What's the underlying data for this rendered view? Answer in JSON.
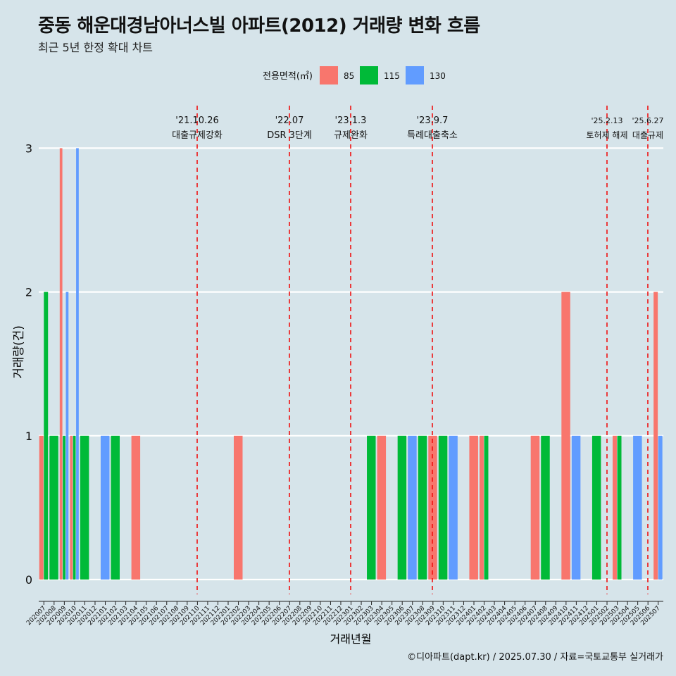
{
  "title": "중동 해운대경남아너스빌 아파트(2012) 거래량 변화 흐름",
  "subtitle": "최근 5년 한정 확대 차트",
  "caption": "©디아파트(dapt.kr) / 2025.07.30 / 자료=국토교통부 실거래가",
  "chart_data": {
    "type": "bar",
    "xlabel": "거래년월",
    "ylabel": "거래량(건)",
    "ylim": [
      0,
      3
    ],
    "yticks": [
      0,
      1,
      2,
      3
    ],
    "legend": {
      "title": "전용면적(㎡)",
      "position": "top"
    },
    "colors": {
      "85": "#f8766d",
      "115": "#00ba38",
      "130": "#619cff"
    },
    "categories": [
      "202007",
      "202008",
      "202009",
      "202010",
      "202011",
      "202012",
      "202101",
      "202102",
      "202103",
      "202104",
      "202105",
      "202106",
      "202107",
      "202108",
      "202109",
      "202110",
      "202111",
      "202112",
      "202201",
      "202202",
      "202203",
      "202204",
      "202205",
      "202206",
      "202207",
      "202208",
      "202209",
      "202210",
      "202211",
      "202212",
      "202301",
      "202302",
      "202303",
      "202304",
      "202305",
      "202306",
      "202307",
      "202308",
      "202309",
      "202310",
      "202311",
      "202312",
      "202401",
      "202402",
      "202403",
      "202404",
      "202405",
      "202406",
      "202407",
      "202408",
      "202409",
      "202410",
      "202411",
      "202412",
      "202501",
      "202502",
      "202503",
      "202504",
      "202505",
      "202506",
      "202507"
    ],
    "series": [
      {
        "name": "85",
        "values": [
          1,
          0,
          3,
          1,
          0,
          0,
          0,
          0,
          0,
          1,
          0,
          0,
          0,
          0,
          0,
          0,
          0,
          0,
          0,
          1,
          0,
          0,
          0,
          0,
          0,
          0,
          0,
          0,
          0,
          0,
          0,
          0,
          0,
          1,
          0,
          0,
          0,
          0,
          1,
          0,
          0,
          0,
          1,
          1,
          0,
          0,
          0,
          0,
          1,
          0,
          0,
          2,
          0,
          0,
          0,
          0,
          1,
          0,
          0,
          0,
          2
        ]
      },
      {
        "name": "115",
        "values": [
          2,
          1,
          1,
          1,
          1,
          0,
          0,
          1,
          0,
          0,
          0,
          0,
          0,
          0,
          0,
          0,
          0,
          0,
          0,
          0,
          0,
          0,
          0,
          0,
          0,
          0,
          0,
          0,
          0,
          0,
          0,
          0,
          1,
          0,
          0,
          1,
          0,
          1,
          0,
          1,
          0,
          0,
          0,
          1,
          0,
          0,
          0,
          0,
          0,
          1,
          0,
          0,
          0,
          0,
          1,
          0,
          1,
          0,
          0,
          0,
          0
        ]
      },
      {
        "name": "130",
        "values": [
          0,
          0,
          2,
          3,
          0,
          0,
          1,
          0,
          0,
          0,
          0,
          0,
          0,
          0,
          0,
          0,
          0,
          0,
          0,
          0,
          0,
          0,
          0,
          0,
          0,
          0,
          0,
          0,
          0,
          0,
          0,
          0,
          0,
          0,
          0,
          0,
          1,
          0,
          0,
          0,
          1,
          0,
          0,
          0,
          0,
          0,
          0,
          0,
          0,
          0,
          0,
          0,
          1,
          0,
          0,
          0,
          0,
          0,
          1,
          0,
          1
        ]
      }
    ],
    "events": [
      {
        "date": "'21.10.26",
        "label": "대출규제강화"
      },
      {
        "date": "'22.07",
        "label": "DSR 3단계"
      },
      {
        "date": "'23.1.3",
        "label": "규제완화"
      },
      {
        "date": "'23.9.7",
        "label": "특례대출축소"
      },
      {
        "date": "'25.2.13",
        "label": "토허제 해제"
      },
      {
        "date": "'25.6.27",
        "label": "대출규제"
      }
    ]
  }
}
